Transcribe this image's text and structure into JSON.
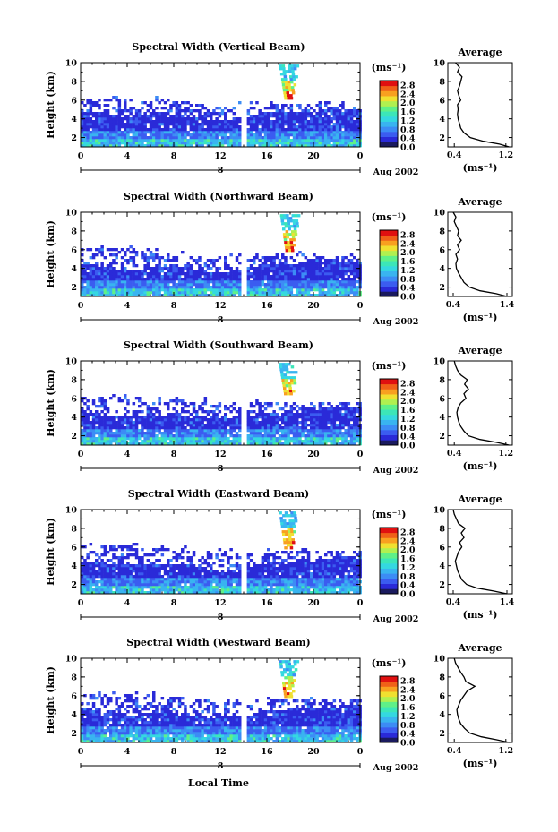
{
  "page": {
    "xlabel": "Local Time",
    "colors": [
      "#1a1a5e",
      "#2a2ad8",
      "#3b5cf0",
      "#3c8cf5",
      "#39b4f0",
      "#34d8e0",
      "#3ce6b8",
      "#5ff088",
      "#b0f050",
      "#f0e030",
      "#f8a020",
      "#f06018",
      "#e01010"
    ]
  },
  "panels": [
    {
      "title": "Spectral Width (Vertical Beam)",
      "ylabel": "Height (km)",
      "x_ticks": [
        "0",
        "4",
        "8",
        "12",
        "16",
        "20",
        "0"
      ],
      "y_ticks": [
        "2",
        "4",
        "6",
        "8",
        "10"
      ],
      "date_day": "8",
      "date_label": "Aug 2002",
      "cbar_unit": "(ms⁻¹)",
      "cbar_ticks": [
        "0.0",
        "0.4",
        "0.8",
        "1.2",
        "1.6",
        "2.0",
        "2.4",
        "2.8"
      ],
      "avg_title": "Average",
      "avg_unit": "(ms⁻¹)",
      "avg_x_ticks": [
        "0.4",
        "1.2"
      ]
    },
    {
      "title": "Spectral Width (Northward Beam)",
      "ylabel": "Height (km)",
      "x_ticks": [
        "0",
        "4",
        "8",
        "12",
        "16",
        "20",
        "0"
      ],
      "y_ticks": [
        "2",
        "4",
        "6",
        "8",
        "10"
      ],
      "date_day": "8",
      "date_label": "Aug 2002",
      "cbar_unit": "(ms⁻¹)",
      "cbar_ticks": [
        "0.0",
        "0.4",
        "0.8",
        "1.2",
        "1.6",
        "2.0",
        "2.4",
        "2.8"
      ],
      "avg_title": "Average",
      "avg_unit": "(ms⁻¹)",
      "avg_x_ticks": [
        "0.4",
        "1.4"
      ]
    },
    {
      "title": "Spectral Width (Southward Beam)",
      "ylabel": "Height (km)",
      "x_ticks": [
        "0",
        "4",
        "8",
        "12",
        "16",
        "20",
        "0"
      ],
      "y_ticks": [
        "2",
        "4",
        "6",
        "8",
        "10"
      ],
      "date_day": "8",
      "date_label": "Aug 2002",
      "cbar_unit": "(ms⁻¹)",
      "cbar_ticks": [
        "0.0",
        "0.4",
        "0.8",
        "1.2",
        "1.6",
        "2.0",
        "2.4",
        "2.8"
      ],
      "avg_title": "Average",
      "avg_unit": "(ms⁻¹)",
      "avg_x_ticks": [
        "0.4",
        "1.2"
      ]
    },
    {
      "title": "Spectral Width (Eastward Beam)",
      "ylabel": "Height (km)",
      "x_ticks": [
        "0",
        "4",
        "8",
        "12",
        "16",
        "20",
        "0"
      ],
      "y_ticks": [
        "2",
        "4",
        "6",
        "8",
        "10"
      ],
      "date_day": "8",
      "date_label": "Aug 2002",
      "cbar_unit": "(ms⁻¹)",
      "cbar_ticks": [
        "0.0",
        "0.4",
        "0.8",
        "1.2",
        "1.6",
        "2.0",
        "2.4",
        "2.8"
      ],
      "avg_title": "Average",
      "avg_unit": "(ms⁻¹)",
      "avg_x_ticks": [
        "0.4",
        "1.4"
      ]
    },
    {
      "title": "Spectral Width (Westward Beam)",
      "ylabel": "Height (km)",
      "x_ticks": [
        "0",
        "4",
        "8",
        "12",
        "16",
        "20",
        "0"
      ],
      "y_ticks": [
        "2",
        "4",
        "6",
        "8",
        "10"
      ],
      "date_day": "8",
      "date_label": "Aug 2002",
      "cbar_unit": "(ms⁻¹)",
      "cbar_ticks": [
        "0.0",
        "0.4",
        "0.8",
        "1.2",
        "1.6",
        "2.0",
        "2.4",
        "2.8"
      ],
      "avg_title": "Average",
      "avg_unit": "(ms⁻¹)",
      "avg_x_ticks": [
        "0.4",
        "1.2"
      ]
    }
  ],
  "chart_data": [
    {
      "type": "heatmap",
      "title": "Spectral Width (Vertical Beam)",
      "xlabel": "Local Time",
      "ylabel": "Height (km)",
      "xlim": [
        0,
        24
      ],
      "ylim": [
        1,
        10
      ],
      "colorbar_range": [
        0.0,
        3.0
      ],
      "colorbar_unit": "(ms⁻¹)",
      "data_gap_hours": [
        13.6,
        14.2
      ],
      "echo_top_km": [
        [
          0,
          6.3
        ],
        [
          4,
          6.2
        ],
        [
          8,
          6.0
        ],
        [
          12,
          5.5
        ],
        [
          16,
          5.6
        ],
        [
          20,
          5.6
        ],
        [
          24,
          5.6
        ]
      ],
      "dense_top_km": [
        [
          0,
          5.0
        ],
        [
          4,
          4.5
        ],
        [
          8,
          4.5
        ],
        [
          12,
          4.0
        ],
        [
          16,
          4.7
        ],
        [
          20,
          5.0
        ],
        [
          24,
          5.2
        ]
      ],
      "plume": {
        "center_hour": 17.8,
        "bottom_km": 6.3,
        "top_km": 9.8,
        "max_value": 3.0
      }
    },
    {
      "type": "line",
      "title": "Average",
      "xlabel": "(ms⁻¹)",
      "ylabel": "Height (km)",
      "xlim": [
        0.3,
        1.3
      ],
      "ylim": [
        1,
        10
      ],
      "x": [
        1.25,
        1.1,
        0.85,
        0.65,
        0.55,
        0.5,
        0.48,
        0.46,
        0.45,
        0.46,
        0.45,
        0.5,
        0.47,
        0.45,
        0.48,
        0.5,
        0.52,
        0.45,
        0.48,
        0.42
      ],
      "y": [
        1.0,
        1.3,
        1.6,
        2.0,
        2.5,
        3.0,
        3.5,
        4.0,
        4.5,
        5.0,
        5.5,
        6.0,
        6.5,
        7.0,
        7.5,
        8.0,
        8.5,
        9.0,
        9.5,
        10.0
      ]
    },
    {
      "type": "heatmap",
      "title": "Spectral Width (Northward Beam)",
      "xlabel": "Local Time",
      "ylabel": "Height (km)",
      "xlim": [
        0,
        24
      ],
      "ylim": [
        1,
        10
      ],
      "colorbar_range": [
        0.0,
        3.0
      ],
      "colorbar_unit": "(ms⁻¹)",
      "data_gap_hours": [
        13.6,
        14.2
      ],
      "echo_top_km": [
        [
          0,
          6.3
        ],
        [
          4,
          6.2
        ],
        [
          8,
          5.6
        ],
        [
          12,
          5.4
        ],
        [
          16,
          5.5
        ],
        [
          20,
          5.5
        ],
        [
          24,
          5.4
        ]
      ],
      "dense_top_km": [
        [
          0,
          4.6
        ],
        [
          4,
          4.0
        ],
        [
          8,
          4.5
        ],
        [
          12,
          3.6
        ],
        [
          16,
          4.6
        ],
        [
          20,
          4.8
        ],
        [
          24,
          5.0
        ]
      ],
      "plume": {
        "center_hour": 17.9,
        "bottom_km": 6.0,
        "top_km": 9.8,
        "max_value": 3.0
      }
    },
    {
      "type": "line",
      "title": "Average",
      "xlabel": "(ms⁻¹)",
      "ylabel": "Height (km)",
      "xlim": [
        0.3,
        1.5
      ],
      "ylim": [
        1,
        10
      ],
      "x": [
        1.4,
        1.2,
        0.9,
        0.7,
        0.6,
        0.55,
        0.5,
        0.46,
        0.45,
        0.48,
        0.45,
        0.52,
        0.48,
        0.55,
        0.48,
        0.5,
        0.46,
        0.42,
        0.45,
        0.4
      ],
      "y": [
        1.0,
        1.3,
        1.6,
        2.0,
        2.5,
        3.0,
        3.5,
        4.0,
        4.5,
        5.0,
        5.5,
        6.0,
        6.5,
        7.0,
        7.5,
        8.0,
        8.5,
        9.0,
        9.5,
        10.0
      ]
    },
    {
      "type": "heatmap",
      "title": "Spectral Width (Southward Beam)",
      "xlabel": "Local Time",
      "ylabel": "Height (km)",
      "xlim": [
        0,
        24
      ],
      "ylim": [
        1,
        10
      ],
      "colorbar_range": [
        0.0,
        3.0
      ],
      "colorbar_unit": "(ms⁻¹)",
      "data_gap_hours": [
        13.6,
        14.2
      ],
      "echo_top_km": [
        [
          0,
          6.4
        ],
        [
          4,
          6.3
        ],
        [
          8,
          6.1
        ],
        [
          12,
          5.6
        ],
        [
          16,
          5.6
        ],
        [
          20,
          5.6
        ],
        [
          24,
          5.6
        ]
      ],
      "dense_top_km": [
        [
          0,
          4.6
        ],
        [
          4,
          4.2
        ],
        [
          8,
          4.5
        ],
        [
          12,
          4.0
        ],
        [
          16,
          4.6
        ],
        [
          20,
          5.0
        ],
        [
          24,
          5.3
        ]
      ],
      "plume": {
        "center_hour": 17.8,
        "bottom_km": 6.4,
        "top_km": 9.8,
        "max_value": 3.0
      }
    },
    {
      "type": "line",
      "title": "Average",
      "xlabel": "(ms⁻¹)",
      "ylabel": "Height (km)",
      "xlim": [
        0.3,
        1.3
      ],
      "ylim": [
        1,
        10
      ],
      "x": [
        1.25,
        1.05,
        0.8,
        0.62,
        0.55,
        0.5,
        0.47,
        0.45,
        0.44,
        0.46,
        0.5,
        0.58,
        0.55,
        0.62,
        0.56,
        0.6,
        0.5,
        0.45,
        0.42,
        0.4
      ],
      "y": [
        1.0,
        1.3,
        1.6,
        2.0,
        2.5,
        3.0,
        3.5,
        4.0,
        4.5,
        5.0,
        5.5,
        6.0,
        6.5,
        7.0,
        7.5,
        8.0,
        8.5,
        9.0,
        9.5,
        10.0
      ]
    },
    {
      "type": "heatmap",
      "title": "Spectral Width (Eastward Beam)",
      "xlabel": "Local Time",
      "ylabel": "Height (km)",
      "xlim": [
        0,
        24
      ],
      "ylim": [
        1,
        10
      ],
      "colorbar_range": [
        0.0,
        3.0
      ],
      "colorbar_unit": "(ms⁻¹)",
      "data_gap_hours": [
        13.6,
        14.2
      ],
      "echo_top_km": [
        [
          0,
          6.3
        ],
        [
          4,
          6.2
        ],
        [
          8,
          6.0
        ],
        [
          12,
          5.5
        ],
        [
          16,
          5.6
        ],
        [
          20,
          5.6
        ],
        [
          24,
          5.6
        ]
      ],
      "dense_top_km": [
        [
          0,
          4.6
        ],
        [
          4,
          4.2
        ],
        [
          8,
          4.4
        ],
        [
          12,
          3.5
        ],
        [
          16,
          4.5
        ],
        [
          20,
          4.9
        ],
        [
          24,
          5.2
        ]
      ],
      "plume": {
        "center_hour": 17.8,
        "bottom_km": 6.0,
        "top_km": 9.8,
        "max_value": 3.0
      }
    },
    {
      "type": "line",
      "title": "Average",
      "xlabel": "(ms⁻¹)",
      "ylabel": "Height (km)",
      "xlim": [
        0.3,
        1.5
      ],
      "ylim": [
        1,
        10
      ],
      "x": [
        1.4,
        1.15,
        0.85,
        0.65,
        0.56,
        0.52,
        0.48,
        0.46,
        0.44,
        0.47,
        0.5,
        0.56,
        0.52,
        0.6,
        0.55,
        0.62,
        0.5,
        0.46,
        0.42,
        0.4
      ],
      "y": [
        1.0,
        1.3,
        1.6,
        2.0,
        2.5,
        3.0,
        3.5,
        4.0,
        4.5,
        5.0,
        5.5,
        6.0,
        6.5,
        7.0,
        7.5,
        8.0,
        8.5,
        9.0,
        9.5,
        10.0
      ]
    },
    {
      "type": "heatmap",
      "title": "Spectral Width (Westward Beam)",
      "xlabel": "Local Time",
      "ylabel": "Height (km)",
      "xlim": [
        0,
        24
      ],
      "ylim": [
        1,
        10
      ],
      "colorbar_range": [
        0.0,
        3.0
      ],
      "colorbar_unit": "(ms⁻¹)",
      "data_gap_hours": [
        13.6,
        14.2
      ],
      "echo_top_km": [
        [
          0,
          6.2
        ],
        [
          4,
          6.2
        ],
        [
          8,
          6.0
        ],
        [
          12,
          5.5
        ],
        [
          16,
          5.6
        ],
        [
          20,
          5.6
        ],
        [
          24,
          5.6
        ]
      ],
      "dense_top_km": [
        [
          0,
          4.6
        ],
        [
          4,
          4.1
        ],
        [
          8,
          4.4
        ],
        [
          12,
          3.6
        ],
        [
          16,
          4.6
        ],
        [
          20,
          4.9
        ],
        [
          24,
          5.2
        ]
      ],
      "plume": {
        "center_hour": 17.8,
        "bottom_km": 6.0,
        "top_km": 9.8,
        "max_value": 3.0
      }
    },
    {
      "type": "line",
      "title": "Average",
      "xlabel": "(ms⁻¹)",
      "ylabel": "Height (km)",
      "xlim": [
        0.3,
        1.3
      ],
      "ylim": [
        1,
        10
      ],
      "x": [
        1.25,
        1.05,
        0.82,
        0.64,
        0.56,
        0.5,
        0.47,
        0.45,
        0.44,
        0.47,
        0.5,
        0.55,
        0.6,
        0.72,
        0.58,
        0.55,
        0.5,
        0.46,
        0.42,
        0.4
      ],
      "y": [
        1.0,
        1.3,
        1.6,
        2.0,
        2.5,
        3.0,
        3.5,
        4.0,
        4.5,
        5.0,
        5.5,
        6.0,
        6.5,
        7.0,
        7.5,
        8.0,
        8.5,
        9.0,
        9.5,
        10.0
      ]
    }
  ]
}
